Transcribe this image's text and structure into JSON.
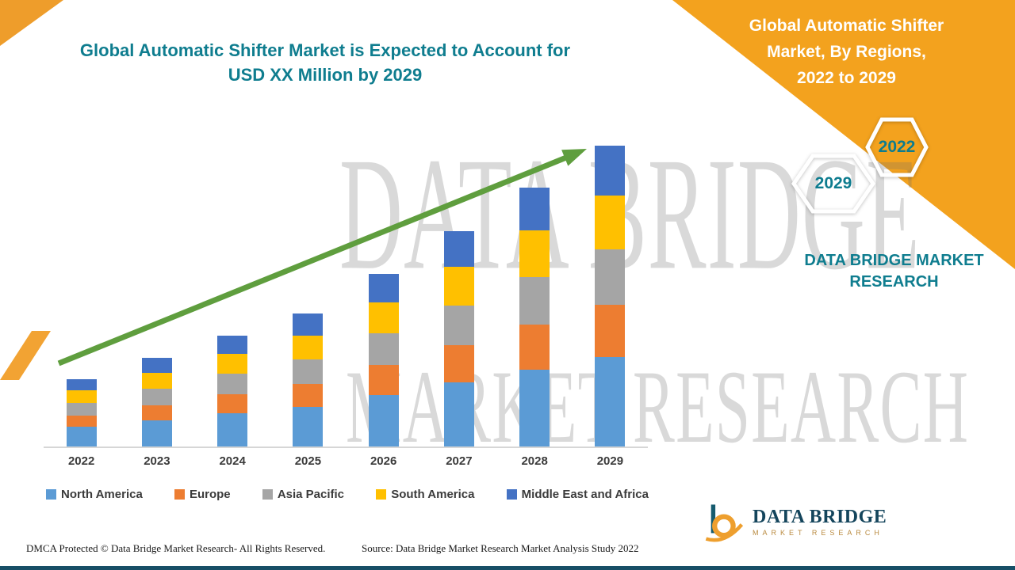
{
  "page": {
    "title_left": "Global Automatic Shifter Market is Expected to Account for\nUSD XX Million by 2029",
    "panel_title": "Global Automatic Shifter\nMarket, By Regions,\n2022 to 2029",
    "hexagons": [
      {
        "label": "2029"
      },
      {
        "label": "2022"
      }
    ],
    "brand_caption": "DATA BRIDGE MARKET\nRESEARCH",
    "watermark_line1": "DATA BRIDGE",
    "watermark_line2": "MARKET RESEARCH",
    "footer": {
      "dmca": "DMCA Protected © Data Bridge Market Research- All Rights Reserved.",
      "source": "Source: Data Bridge Market Research Market Analysis Study 2022"
    },
    "logo": {
      "name": "DATA BRIDGE",
      "subtitle": "MARKET RESEARCH"
    },
    "colors": {
      "panel_orange": "#F3A21E",
      "brand_teal": "#0F7D8F",
      "arrow_green": "#5F9E3E",
      "bottom_strip": "#174F66"
    }
  },
  "chart_data": {
    "type": "bar",
    "stacked": true,
    "title": "Global Automatic Shifter Market is Expected to Account for USD XX Million by 2029",
    "xlabel": "",
    "ylabel": "",
    "value_note": "values not labeled on chart (USD XX Million); numbers are relative units estimated from bar heights",
    "pixel_per_unit": 1,
    "categories": [
      "2022",
      "2023",
      "2024",
      "2025",
      "2026",
      "2027",
      "2028",
      "2029"
    ],
    "series": [
      {
        "name": "North America",
        "color": "#5B9BD5",
        "values": [
          25,
          33,
          42,
          50,
          65,
          81,
          97,
          113
        ]
      },
      {
        "name": "Europe",
        "color": "#ED7D31",
        "values": [
          14,
          19,
          24,
          29,
          38,
          47,
          57,
          66
        ]
      },
      {
        "name": "Asia Pacific",
        "color": "#A5A5A5",
        "values": [
          16,
          21,
          26,
          31,
          40,
          50,
          60,
          70
        ]
      },
      {
        "name": "South America",
        "color": "#FFC000",
        "values": [
          16,
          20,
          25,
          30,
          39,
          49,
          59,
          68
        ]
      },
      {
        "name": "Middle East and Africa",
        "color": "#4472C4",
        "values": [
          14,
          19,
          23,
          28,
          36,
          45,
          54,
          63
        ]
      }
    ],
    "totals": [
      85,
      112,
      140,
      168,
      218,
      272,
      327,
      380
    ],
    "legend_position": "bottom",
    "grid": false,
    "trend_arrow": true
  }
}
